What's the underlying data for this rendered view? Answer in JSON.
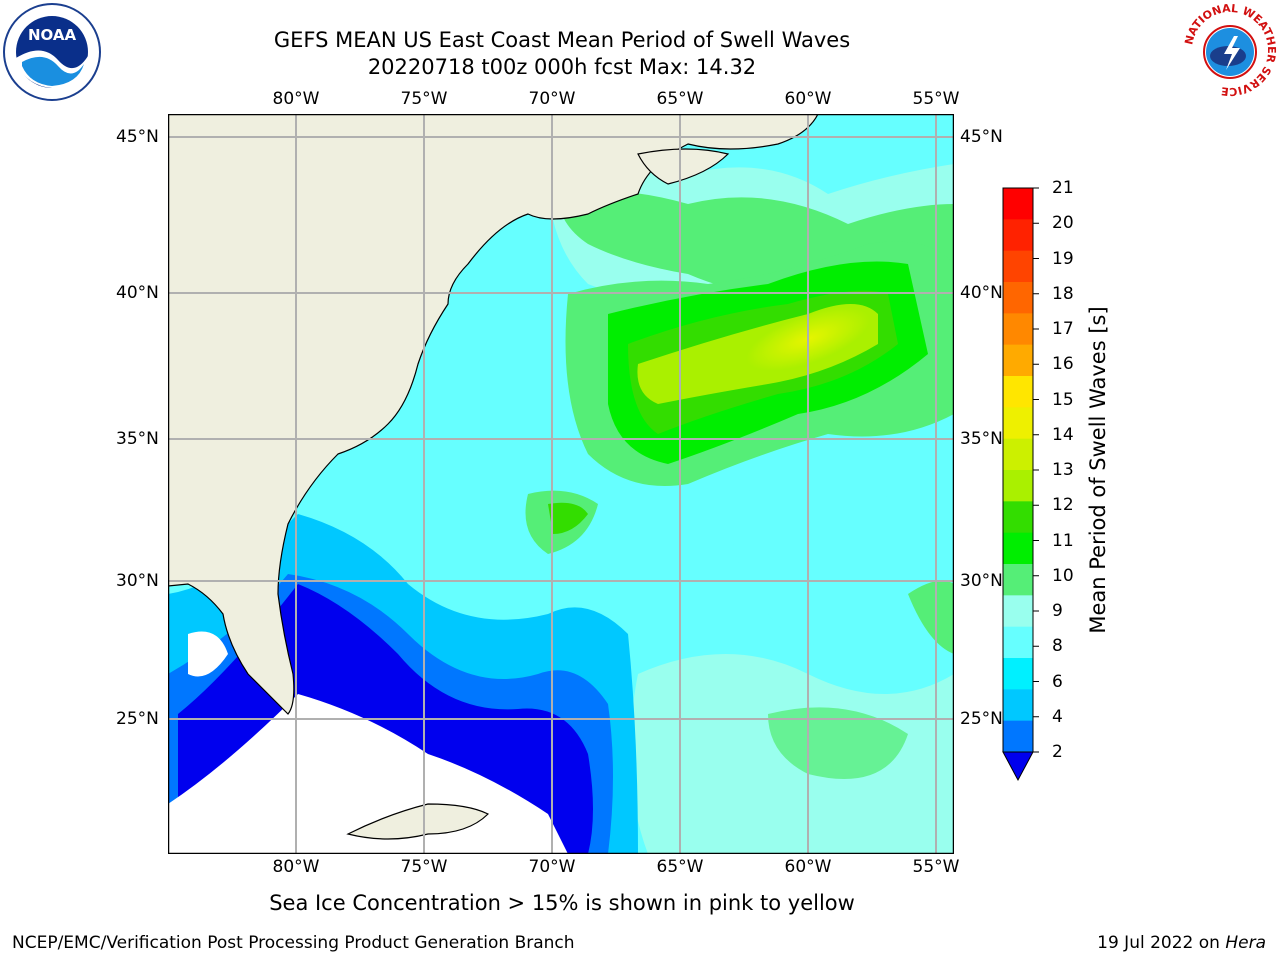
{
  "header": {
    "title_line1": "GEFS MEAN US East Coast Mean Period of Swell Waves",
    "title_line2": "20220718 t00z 000h fcst   Max: 14.32"
  },
  "logos": {
    "left": {
      "text": "NOAA",
      "ring_text": "NATIONAL OCEANIC AND ATMOSPHERIC ADMINISTRATION · U.S. DEPARTMENT OF COMMERCE ·"
    },
    "right": {
      "ring_text": "NATIONAL WEATHER SERVICE"
    }
  },
  "map": {
    "lon_labels": [
      "80°W",
      "75°W",
      "70°W",
      "65°W",
      "60°W",
      "55°W"
    ],
    "lat_labels": [
      "45°N",
      "40°N",
      "35°N",
      "30°N",
      "25°N"
    ]
  },
  "colorbar": {
    "title": "Mean Period of Swell Waves [s]",
    "ticks": [
      "21",
      "20",
      "19",
      "18",
      "17",
      "16",
      "15",
      "14",
      "13",
      "12",
      "11",
      "10",
      "9",
      "8",
      "6",
      "4",
      "2"
    ],
    "colors": [
      "#ff0000",
      "#ff2200",
      "#ff4400",
      "#ff6600",
      "#ff8800",
      "#ffaa00",
      "#ffe600",
      "#eef000",
      "#ccf000",
      "#aaf000",
      "#33dd00",
      "#00ee00",
      "#55ee77",
      "#99ffee",
      "#66ffff",
      "#00f0ff",
      "#00c8ff",
      "#0077ff",
      "#0000ee"
    ]
  },
  "caption": "Sea Ice Concentration > 15% is shown in pink to yellow",
  "footer": {
    "left": "NCEP/EMC/Verification Post Processing Product Generation Branch",
    "right_date": "19 Jul 2022 on ",
    "right_host": "Hera"
  }
}
